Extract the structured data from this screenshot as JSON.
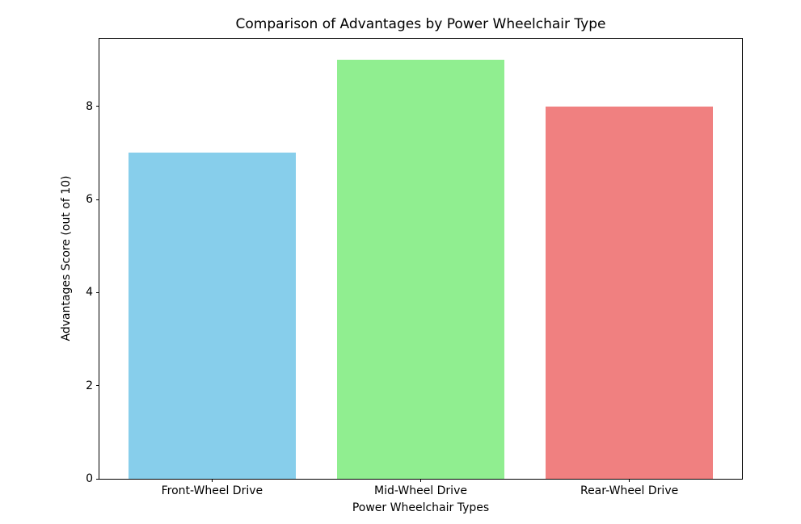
{
  "chart_data": {
    "type": "bar",
    "title": "Comparison of Advantages by Power Wheelchair Type",
    "xlabel": "Power Wheelchair Types",
    "ylabel": "Advantages Score (out of 10)",
    "categories": [
      "Front-Wheel Drive",
      "Mid-Wheel Drive",
      "Rear-Wheel Drive"
    ],
    "values": [
      7,
      9,
      8
    ],
    "colors": [
      "#87ceeb",
      "#90ee90",
      "#f08080"
    ],
    "yticks": [
      0,
      2,
      4,
      6,
      8
    ],
    "ylim": [
      0,
      9.45
    ],
    "xlim": [
      -0.54,
      2.54
    ],
    "bar_width": 0.8,
    "grid": false,
    "legend_position": "none",
    "axis_color": "#000000",
    "plot_background": "#ffffff"
  }
}
